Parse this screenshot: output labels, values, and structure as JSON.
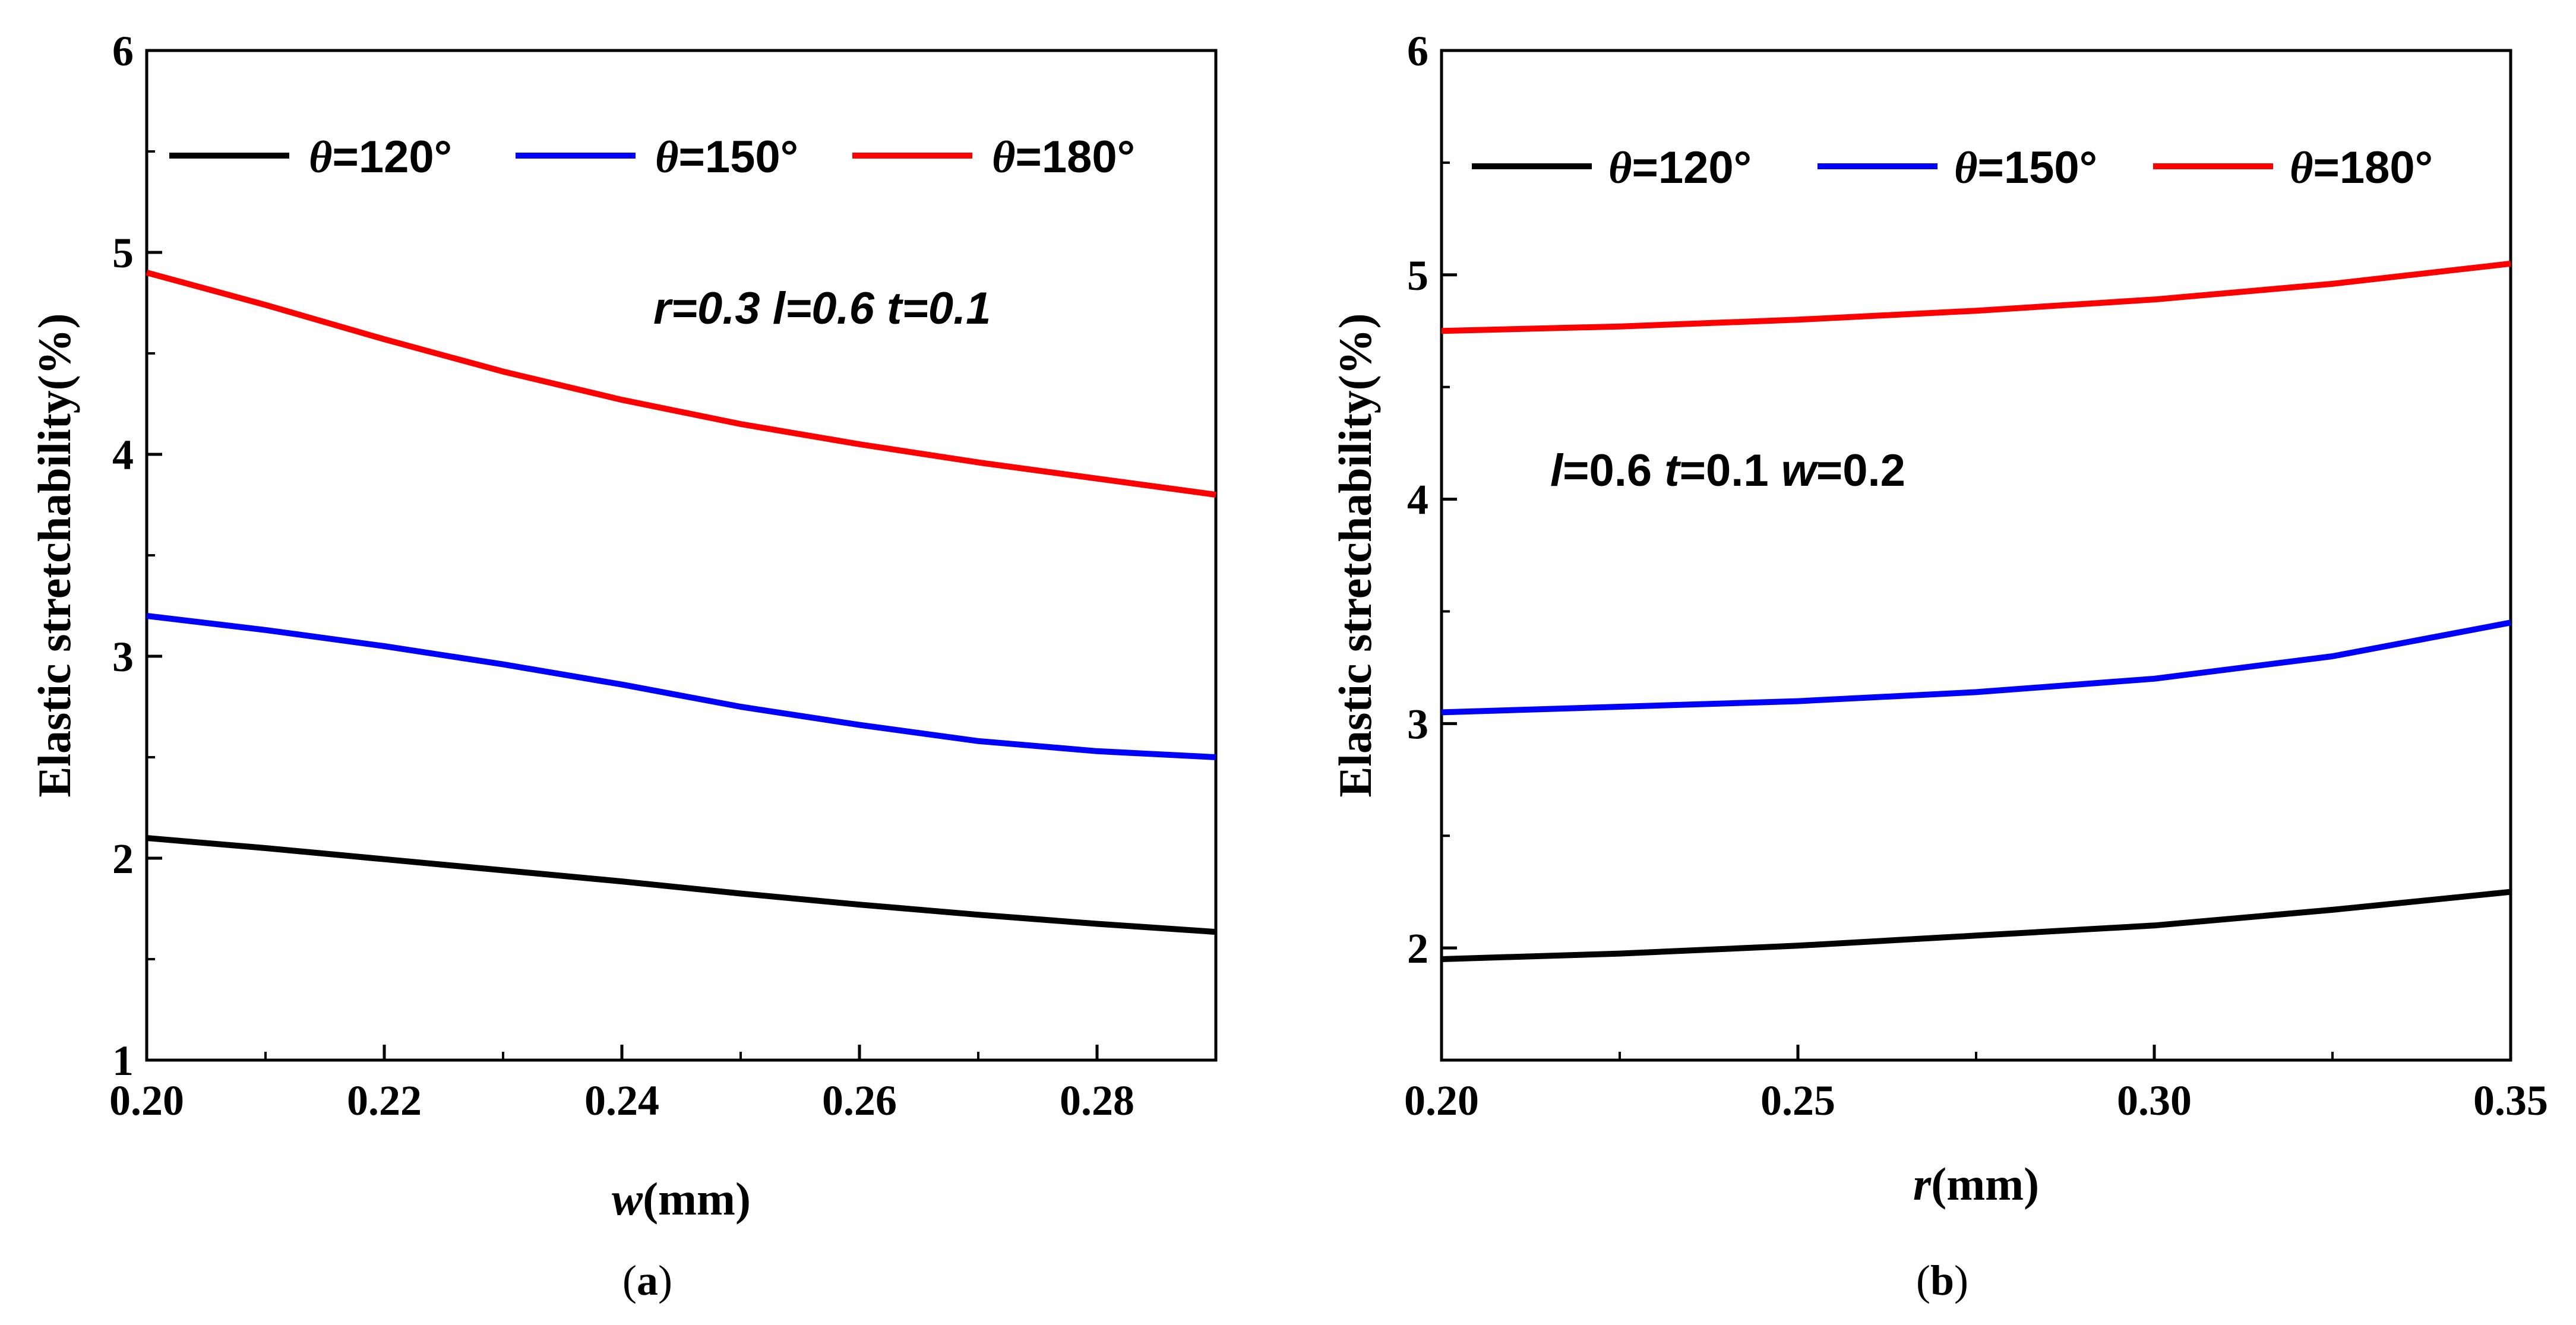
{
  "chart_data": [
    {
      "type": "line",
      "panel": "a",
      "caption_letter": "a",
      "xlabel_var": "w",
      "xlabel_unit": "(mm)",
      "ylabel": "Elastic stretchability(%)",
      "xlim": [
        0.2,
        0.29
      ],
      "ylim": [
        1,
        6
      ],
      "xticks": [
        0.2,
        0.22,
        0.24,
        0.26,
        0.28
      ],
      "xtick_labels": [
        "0.20",
        "0.22",
        "0.24",
        "0.26",
        "0.28"
      ],
      "yticks": [
        1,
        2,
        3,
        4,
        5,
        6
      ],
      "ytick_labels": [
        "1",
        "2",
        "3",
        "4",
        "5",
        "6"
      ],
      "legend_position": "top",
      "annotation": [
        {
          "text": "r",
          "italic": true
        },
        {
          "text": "=0.3  ",
          "italic": true
        },
        {
          "text": "l",
          "italic": true
        },
        {
          "text": "=0.6  ",
          "italic": true
        },
        {
          "text": "t",
          "italic": true
        },
        {
          "text": "=0.1",
          "italic": true
        }
      ],
      "series": [
        {
          "name": "θ=120°",
          "symbol": "θ",
          "value_label": "=120°",
          "color": "#000000",
          "x": [
            0.2,
            0.21,
            0.22,
            0.23,
            0.24,
            0.25,
            0.26,
            0.27,
            0.28,
            0.29
          ],
          "y": [
            2.1,
            2.05,
            1.995,
            1.94,
            1.885,
            1.825,
            1.77,
            1.72,
            1.675,
            1.635
          ]
        },
        {
          "name": "θ=150°",
          "symbol": "θ",
          "value_label": "=150°",
          "color": "#0000ff",
          "x": [
            0.2,
            0.21,
            0.22,
            0.23,
            0.24,
            0.25,
            0.26,
            0.27,
            0.28,
            0.29
          ],
          "y": [
            3.2,
            3.13,
            3.05,
            2.96,
            2.86,
            2.75,
            2.66,
            2.58,
            2.53,
            2.5
          ]
        },
        {
          "name": "θ=180°",
          "symbol": "θ",
          "value_label": "=180°",
          "color": "#ff0000",
          "x": [
            0.2,
            0.21,
            0.22,
            0.23,
            0.24,
            0.25,
            0.26,
            0.27,
            0.28,
            0.29
          ],
          "y": [
            4.9,
            4.74,
            4.57,
            4.41,
            4.27,
            4.15,
            4.05,
            3.96,
            3.88,
            3.8
          ]
        }
      ]
    },
    {
      "type": "line",
      "panel": "b",
      "caption_letter": "b",
      "xlabel_var": "r",
      "xlabel_unit": "(mm)",
      "ylabel": "Elastic stretchability(%)",
      "xlim": [
        0.2,
        0.35
      ],
      "ylim": [
        1.5,
        6
      ],
      "xticks": [
        0.2,
        0.25,
        0.3,
        0.35
      ],
      "xtick_labels": [
        "0.20",
        "0.25",
        "0.30",
        "0.35"
      ],
      "yticks": [
        2,
        3,
        4,
        5,
        6
      ],
      "ytick_labels": [
        "2",
        "3",
        "4",
        "5",
        "6"
      ],
      "legend_position": "top",
      "annotation": [
        {
          "text": "l",
          "italic": true
        },
        {
          "text": "=0.6  ",
          "italic": false
        },
        {
          "text": "t",
          "italic": true
        },
        {
          "text": "=0.1  ",
          "italic": false
        },
        {
          "text": "w",
          "italic": true
        },
        {
          "text": "=0.2",
          "italic": false
        }
      ],
      "series": [
        {
          "name": "θ=120°",
          "symbol": "θ",
          "value_label": "=120°",
          "color": "#000000",
          "x": [
            0.2,
            0.225,
            0.25,
            0.275,
            0.3,
            0.325,
            0.35
          ],
          "y": [
            1.95,
            1.975,
            2.01,
            2.055,
            2.1,
            2.17,
            2.25
          ]
        },
        {
          "name": "θ=150°",
          "symbol": "θ",
          "value_label": "=150°",
          "color": "#0000ff",
          "x": [
            0.2,
            0.225,
            0.25,
            0.275,
            0.3,
            0.325,
            0.35
          ],
          "y": [
            3.05,
            3.075,
            3.1,
            3.14,
            3.2,
            3.3,
            3.45
          ]
        },
        {
          "name": "θ=180°",
          "symbol": "θ",
          "value_label": "=180°",
          "color": "#ff0000",
          "x": [
            0.2,
            0.225,
            0.25,
            0.275,
            0.3,
            0.325,
            0.35
          ],
          "y": [
            4.75,
            4.77,
            4.8,
            4.84,
            4.89,
            4.96,
            5.05
          ]
        }
      ]
    }
  ]
}
